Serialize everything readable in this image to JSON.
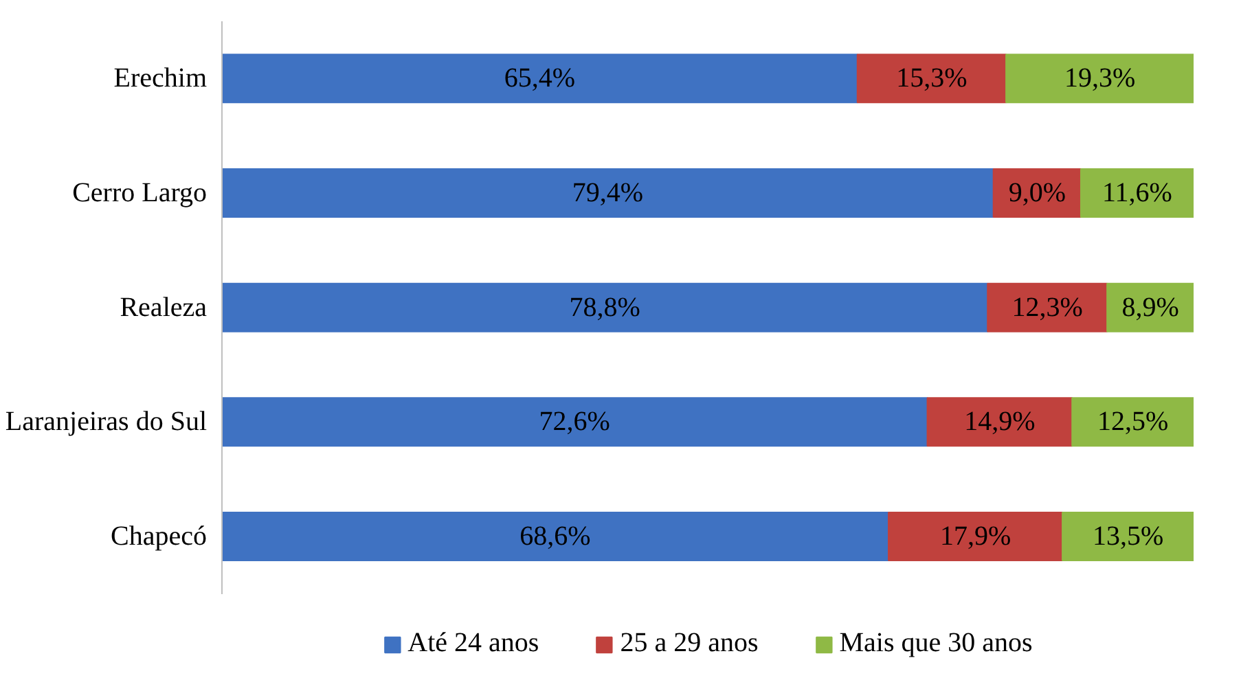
{
  "chart_data": {
    "type": "bar",
    "orientation": "horizontal",
    "stacked": true,
    "categories": [
      "Erechim",
      "Cerro Largo",
      "Realeza",
      "Laranjeiras do Sul",
      "Chapecó"
    ],
    "series": [
      {
        "name": "Até 24 anos",
        "color": "#3f72c2",
        "values": [
          65.4,
          79.4,
          78.8,
          72.6,
          68.6
        ],
        "value_labels": [
          "65,4%",
          "79,4%",
          "78,8%",
          "72,6%",
          "68,6%"
        ]
      },
      {
        "name": "25 a 29 anos",
        "color": "#c0413d",
        "values": [
          15.3,
          9.0,
          12.3,
          14.9,
          17.9
        ],
        "value_labels": [
          "15,3%",
          "9,0%",
          "12,3%",
          "14,9%",
          "17,9%"
        ]
      },
      {
        "name": "Mais que 30 anos",
        "color": "#8fb945",
        "values": [
          19.3,
          11.6,
          8.9,
          12.5,
          13.5
        ],
        "value_labels": [
          "19,3%",
          "11,6%",
          "8,9%",
          "12,5%",
          "13,5%"
        ]
      }
    ],
    "legend": "bottom",
    "grid": false
  }
}
